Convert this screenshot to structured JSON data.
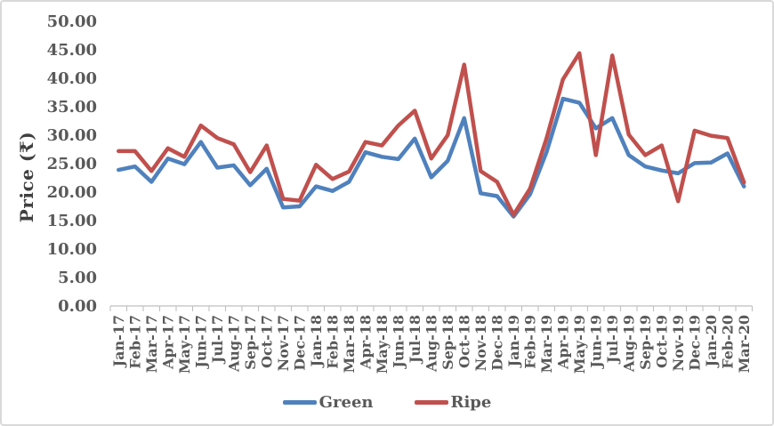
{
  "chart_data": {
    "type": "line",
    "title": "",
    "xlabel": "",
    "ylabel": "Price (₹)",
    "ylim": [
      0,
      50
    ],
    "y_tick_step": 5,
    "y_tick_labels": [
      "0.00",
      "5.00",
      "10.00",
      "15.00",
      "20.00",
      "25.00",
      "30.00",
      "35.00",
      "40.00",
      "45.00",
      "50.00"
    ],
    "grid": false,
    "legend_position": "bottom",
    "categories": [
      "Jan-17",
      "Feb-17",
      "Mar-17",
      "Apr-17",
      "May-17",
      "Jun-17",
      "Jul-17",
      "Aug-17",
      "Sep-17",
      "Oct-17",
      "Nov-17",
      "Dec-17",
      "Jan-18",
      "Feb-18",
      "Mar-18",
      "Apr-18",
      "May-18",
      "Jun-18",
      "Jul-18",
      "Aug-18",
      "Sep-18",
      "Oct-18",
      "Nov-18",
      "Dec-18",
      "Jan-19",
      "Feb-19",
      "Mar-19",
      "Apr-19",
      "May-19",
      "Jun-19",
      "Jul-19",
      "Aug-19",
      "Sep-19",
      "Oct-19",
      "Nov-19",
      "Dec-19",
      "Jan-20",
      "Feb-20",
      "Mar-20"
    ],
    "series": [
      {
        "name": "Green",
        "color": "#4F81BD",
        "values": [
          23.9,
          24.5,
          21.8,
          25.9,
          24.9,
          28.8,
          24.3,
          24.7,
          21.2,
          24.1,
          17.3,
          17.5,
          21.0,
          20.2,
          21.8,
          27.0,
          26.2,
          25.8,
          29.4,
          22.6,
          25.5,
          33.0,
          19.8,
          19.3,
          15.7,
          19.6,
          27.0,
          36.4,
          35.7,
          31.2,
          33.0,
          26.5,
          24.5,
          23.8,
          23.3,
          25.1,
          25.2,
          26.8,
          21.0
        ]
      },
      {
        "name": "Ripe",
        "color": "#C0504D",
        "values": [
          27.2,
          27.2,
          23.7,
          27.7,
          26.2,
          31.7,
          29.5,
          28.4,
          23.5,
          28.2,
          18.8,
          18.5,
          24.8,
          22.3,
          23.6,
          28.8,
          28.2,
          31.7,
          34.3,
          25.9,
          30.0,
          42.4,
          23.7,
          21.8,
          16.0,
          20.6,
          29.4,
          39.8,
          44.4,
          26.5,
          44.0,
          30.1,
          26.5,
          28.2,
          18.4,
          30.8,
          29.9,
          29.5,
          21.7
        ]
      }
    ]
  },
  "colors": {
    "background": "#FFFFFF",
    "border": "#D9D9D9",
    "axis_line": "#BFBFBF",
    "tick_mark": "#BFBFBF",
    "tick_label_text": "#595959",
    "axis_title_text": "#404040",
    "legend_text": "#595959"
  }
}
